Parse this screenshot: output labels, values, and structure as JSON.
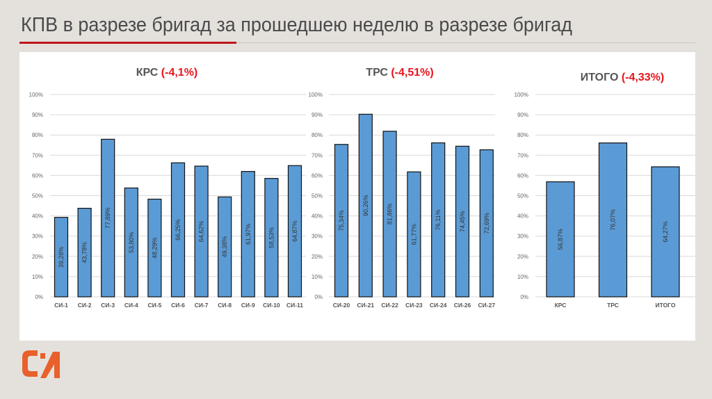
{
  "slide": {
    "title": "КПВ в разрезе бригад за прошедшею неделю в разрезе бригад",
    "accent_color": "#c0141c",
    "logo_color": "#e8602c",
    "logo_text": "СИ"
  },
  "chart_data": [
    {
      "type": "bar",
      "title": "КРС",
      "title_delta": "(-4,1%)",
      "categories": [
        "СИ-1",
        "СИ-2",
        "СИ-3",
        "СИ-4",
        "СИ-5",
        "СИ-6",
        "СИ-7",
        "СИ-8",
        "СИ-9",
        "СИ-10",
        "СИ-11"
      ],
      "values": [
        39.28,
        43.78,
        77.89,
        53.8,
        48.29,
        66.25,
        64.62,
        49.38,
        61.97,
        58.53,
        64.87
      ],
      "data_labels": [
        "39,28%",
        "43,78%",
        "77,89%",
        "53,80%",
        "48,29%",
        "66,25%",
        "64,62%",
        "49,38%",
        "61,97%",
        "58,53%",
        "64,87%"
      ],
      "ylim": [
        0,
        100
      ],
      "yticks": [
        "0%",
        "10%",
        "20%",
        "30%",
        "40%",
        "50%",
        "60%",
        "70%",
        "80%",
        "90%",
        "100%"
      ],
      "grid": true,
      "bar_color": "#5b9bd5",
      "delta_color": "#e8141c"
    },
    {
      "type": "bar",
      "title": "ТРС",
      "title_delta": "(-4,51%)",
      "categories": [
        "СИ-20",
        "СИ-21",
        "СИ-22",
        "СИ-23",
        "СИ-24",
        "СИ-26",
        "СИ-27"
      ],
      "values": [
        75.34,
        90.26,
        81.86,
        61.77,
        76.11,
        74.45,
        72.69
      ],
      "data_labels": [
        "75,34%",
        "90,26%",
        "81,86%",
        "61,77%",
        "76,11%",
        "74,45%",
        "72,69%"
      ],
      "ylim": [
        0,
        100
      ],
      "yticks": [
        "0%",
        "10%",
        "20%",
        "30%",
        "40%",
        "50%",
        "60%",
        "70%",
        "80%",
        "90%",
        "100%"
      ],
      "grid": true,
      "bar_color": "#5b9bd5",
      "delta_color": "#e8141c"
    },
    {
      "type": "bar",
      "title": "ИТОГО",
      "title_delta": "(-4,33%)",
      "categories": [
        "КРС",
        "ТРС",
        "ИТОГО"
      ],
      "values": [
        56.87,
        76.07,
        64.27
      ],
      "data_labels": [
        "56,87%",
        "76,07%",
        "64,27%"
      ],
      "ylim": [
        0,
        100
      ],
      "yticks": [
        "0%",
        "10%",
        "20%",
        "30%",
        "40%",
        "50%",
        "60%",
        "70%",
        "80%",
        "90%",
        "100%"
      ],
      "grid": true,
      "bar_color": "#5b9bd5",
      "delta_color": "#e8141c"
    }
  ]
}
